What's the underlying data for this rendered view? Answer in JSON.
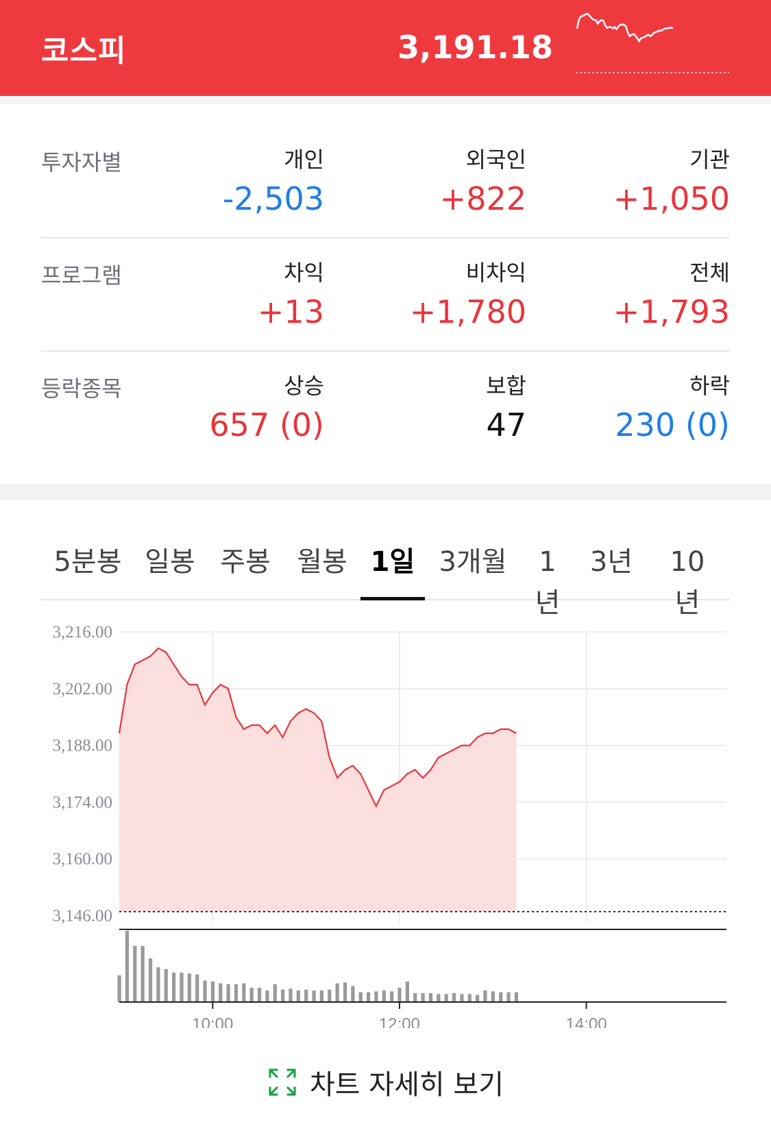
{
  "header": {
    "title": "코스피",
    "value": "3,191.18",
    "accent_color": "#ee3a3f"
  },
  "stats": {
    "investor": {
      "label": "투자자별",
      "cols": [
        {
          "name": "개인",
          "value": "-2,503",
          "color": "blue"
        },
        {
          "name": "외국인",
          "value": "+822",
          "color": "red"
        },
        {
          "name": "기관",
          "value": "+1,050",
          "color": "red"
        }
      ]
    },
    "program": {
      "label": "프로그램",
      "cols": [
        {
          "name": "차익",
          "value": "+13",
          "color": "red"
        },
        {
          "name": "비차익",
          "value": "+1,780",
          "color": "red"
        },
        {
          "name": "전체",
          "value": "+1,793",
          "color": "red"
        }
      ]
    },
    "advance_decline": {
      "label": "등락종목",
      "cols": [
        {
          "name": "상승",
          "value": "657 (0)",
          "color": "red"
        },
        {
          "name": "보합",
          "value": "47",
          "color": "black"
        },
        {
          "name": "하락",
          "value": "230 (0)",
          "color": "blue"
        }
      ]
    }
  },
  "tabs": {
    "items": [
      "5분봉",
      "일봉",
      "주봉",
      "월봉",
      "1일",
      "3개월",
      "1년",
      "3년",
      "10년"
    ],
    "active": "1일"
  },
  "chart_data": {
    "type": "area",
    "y_ticks": [
      "3,216.00",
      "3,202.00",
      "3,188.00",
      "3,174.00",
      "3,160.00",
      "3,146.00"
    ],
    "ylim": [
      3146,
      3216
    ],
    "x_ticks": [
      "10:00",
      "12:00",
      "14:00"
    ],
    "xlim": [
      "09:00",
      "15:30"
    ],
    "previous_close": 3147,
    "line_color": "#e8353b",
    "fill_color": "#fbdede",
    "x": [
      "09:00",
      "09:05",
      "09:10",
      "09:15",
      "09:20",
      "09:25",
      "09:30",
      "09:35",
      "09:40",
      "09:45",
      "09:50",
      "09:55",
      "10:00",
      "10:05",
      "10:10",
      "10:15",
      "10:20",
      "10:25",
      "10:30",
      "10:35",
      "10:40",
      "10:45",
      "10:50",
      "10:55",
      "11:00",
      "11:05",
      "11:10",
      "11:15",
      "11:20",
      "11:25",
      "11:30",
      "11:35",
      "11:40",
      "11:45",
      "11:50",
      "11:55",
      "12:00",
      "12:05",
      "12:10",
      "12:15",
      "12:20",
      "12:25",
      "12:30",
      "12:35",
      "12:40",
      "12:45",
      "12:50",
      "12:55",
      "13:00",
      "13:05",
      "13:10",
      "13:15"
    ],
    "y": [
      3191,
      3203,
      3208,
      3209,
      3210,
      3212,
      3211,
      3208,
      3205,
      3203,
      3203,
      3198,
      3201,
      3203,
      3202,
      3195,
      3192,
      3193,
      3193,
      3191,
      3193,
      3190,
      3194,
      3196,
      3197,
      3196,
      3194,
      3185,
      3180,
      3182,
      3183,
      3181,
      3177,
      3173,
      3177,
      3178,
      3179,
      3181,
      3182,
      3180,
      3182,
      3185,
      3186,
      3187,
      3188,
      3188,
      3190,
      3191,
      3191,
      3192,
      3192,
      3191
    ],
    "volume": [
      3.0,
      8.0,
      6.3,
      6.3,
      4.9,
      3.9,
      3.7,
      3.3,
      3.3,
      3.2,
      3.1,
      2.4,
      2.3,
      2.1,
      2.0,
      2.0,
      2.1,
      1.6,
      1.6,
      1.3,
      2.0,
      1.4,
      1.5,
      1.3,
      1.4,
      1.3,
      1.3,
      1.4,
      2.1,
      2.2,
      1.8,
      1.1,
      1.1,
      1.2,
      1.3,
      1.2,
      1.6,
      2.3,
      1.0,
      1.0,
      1.0,
      0.9,
      0.9,
      1.0,
      0.9,
      0.9,
      0.8,
      1.3,
      1.2,
      1.1,
      1.1,
      1.1
    ]
  },
  "footer": {
    "detail_label": "차트 자세히 보기",
    "icon": "expand-arrows-icon",
    "icon_color": "#22a34a"
  }
}
